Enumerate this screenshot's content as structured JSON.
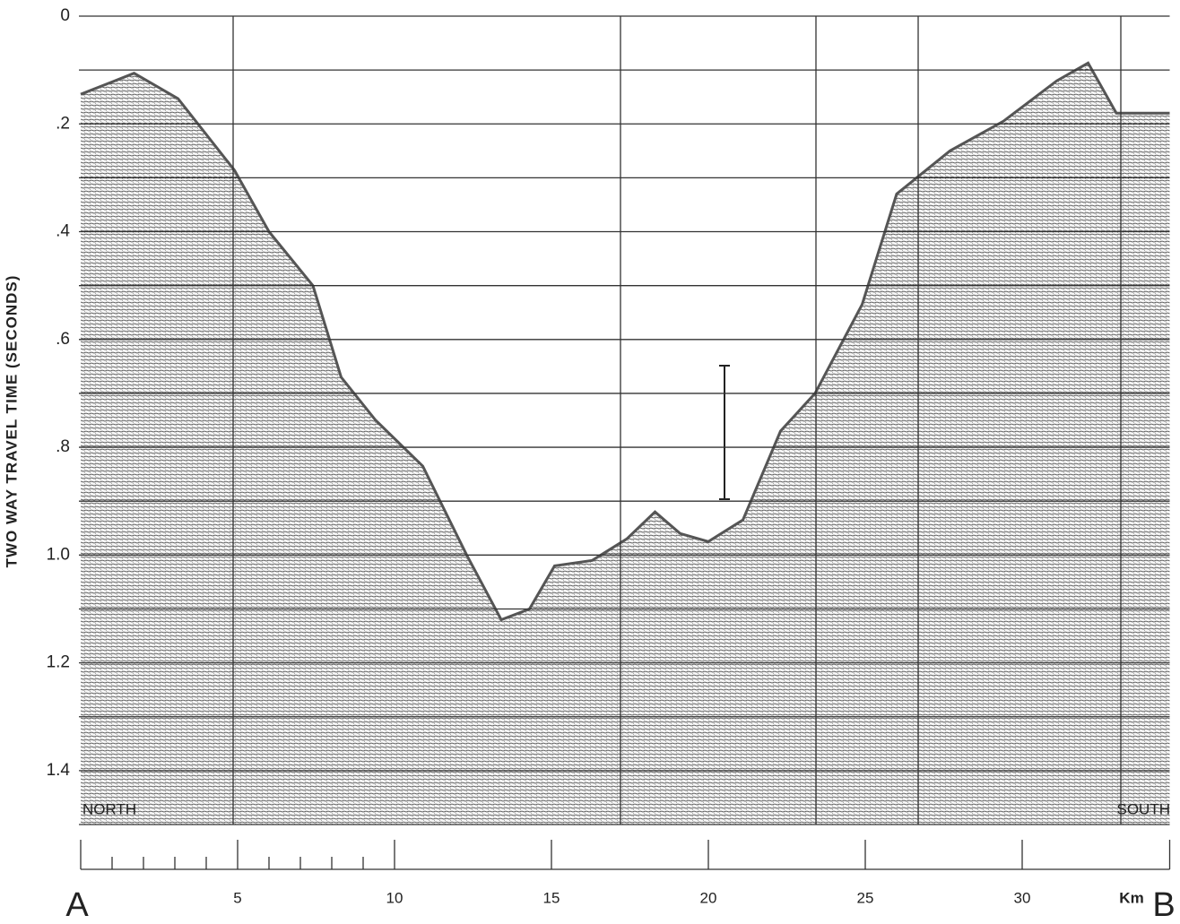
{
  "chart_data": {
    "type": "area",
    "y_label": "TWO WAY TRAVEL TIME (SECONDS)",
    "x_unit": "Km",
    "left_end": "A",
    "right_end": "B",
    "left_direction": "NORTH",
    "right_direction": "SOUTH",
    "ylim": [
      0,
      1.5
    ],
    "yticks": [
      0,
      {
        "value": 0.2,
        "label": ".2"
      },
      {
        "value": 0.4,
        "label": ".4"
      },
      {
        "value": 0.6,
        "label": ".6"
      },
      {
        "value": 0.8,
        "label": ".8"
      },
      {
        "value": 1.0,
        "label": "1.0"
      },
      1.2,
      1.4
    ],
    "minor_yticks": [
      0.1,
      0.3,
      0.5,
      0.7,
      0.9,
      1.1,
      1.3,
      1.5
    ],
    "xlim": [
      0,
      34.7
    ],
    "xticks": [
      5,
      10,
      15,
      20,
      25,
      30
    ],
    "minor_xticks": [
      1,
      2,
      3,
      4,
      6,
      7,
      8,
      9
    ],
    "grid": true,
    "color": "#555555",
    "series": [
      {
        "x": [
          0,
          1.7,
          3.1,
          4.9,
          6.0,
          7.4,
          8.3,
          9.4,
          10.9,
          12.3,
          13.4,
          14.3,
          15.1,
          16.3,
          17.4,
          18.3,
          19.1,
          20.0,
          21.1,
          22.3,
          23.4,
          24.9,
          26.0,
          27.7,
          29.4,
          31.1,
          32.1,
          33.0,
          34.7
        ],
        "values": [
          0.145,
          0.106,
          0.153,
          0.286,
          0.4,
          0.5,
          0.67,
          0.75,
          0.835,
          1.0,
          1.12,
          1.1,
          1.02,
          1.01,
          0.97,
          0.92,
          0.96,
          0.975,
          0.935,
          0.77,
          0.7,
          0.535,
          0.33,
          0.25,
          0.195,
          0.12,
          0.087,
          0.18,
          0.18
        ]
      }
    ]
  }
}
